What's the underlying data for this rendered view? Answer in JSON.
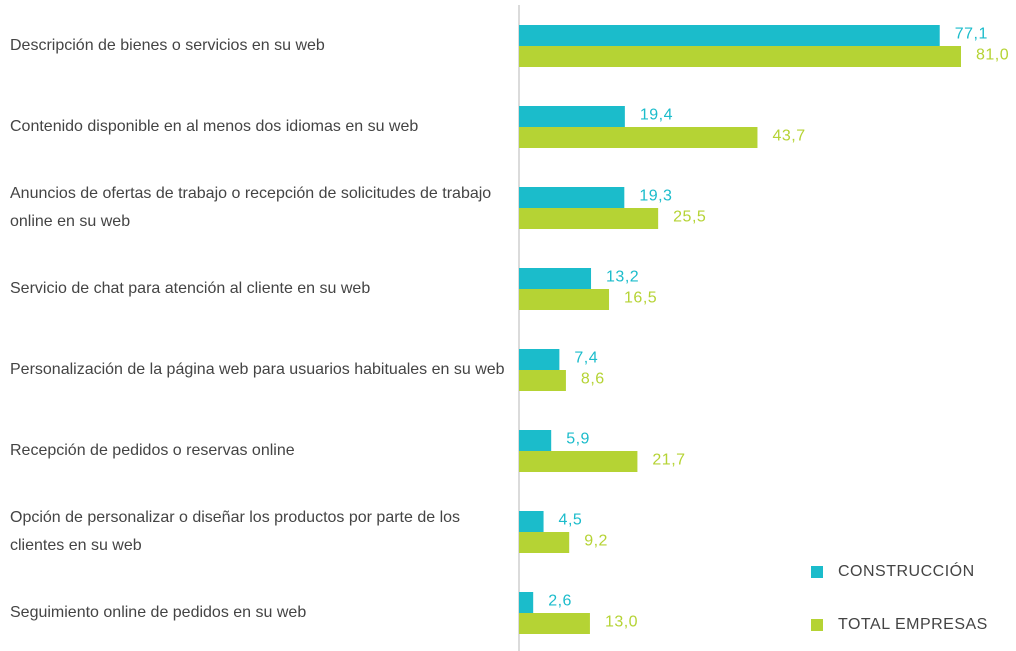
{
  "chart_data": {
    "type": "bar",
    "orientation": "horizontal",
    "categories": [
      "Descripción de bienes o servicios en su web",
      "Contenido disponible en al menos dos idiomas en su web",
      "Anuncios de ofertas de trabajo o recepción de solicitudes de trabajo online en su web",
      "Servicio de chat para atención al cliente en su web",
      "Personalización de la página web para usuarios habituales en su web",
      "Recepción de pedidos o reservas online",
      "Opción de personalizar o diseñar los productos por parte de los clientes en su web",
      "Seguimiento online de pedidos en su web"
    ],
    "series": [
      {
        "name": "CONSTRUCCIÓN",
        "color": "#1bbccb",
        "values": [
          77.1,
          19.4,
          19.3,
          13.2,
          7.4,
          5.9,
          4.5,
          2.6
        ],
        "value_labels": [
          "77,1",
          "19,4",
          "19,3",
          "13,2",
          "7,4",
          "5,9",
          "4,5",
          "2,6"
        ]
      },
      {
        "name": "TOTAL EMPRESAS",
        "color": "#b5d334",
        "values": [
          81.0,
          43.7,
          25.5,
          16.5,
          8.6,
          21.7,
          9.2,
          13.0
        ],
        "value_labels": [
          "81,0",
          "43,7",
          "25,5",
          "16,5",
          "8,6",
          "21,7",
          "9,2",
          "13,0"
        ]
      }
    ],
    "legend": "bottom-right"
  }
}
